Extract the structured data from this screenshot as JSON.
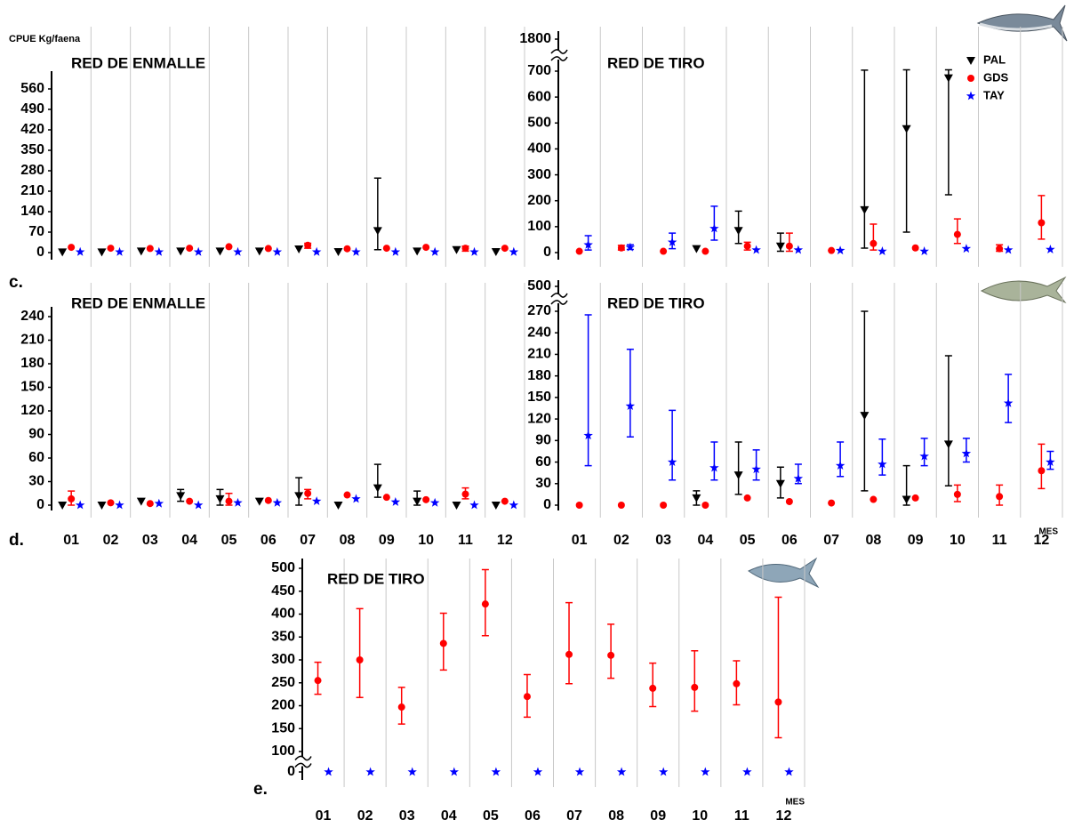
{
  "chart_data": [
    {
      "type": "errorbar",
      "title": "RED DE ENMALLE",
      "ylabel": "CPUE Kg/faena",
      "categories": [
        null,
        null,
        null,
        null,
        null,
        null,
        null,
        null,
        null,
        null,
        null,
        null
      ],
      "ylim": [
        0,
        560
      ],
      "yticks": [
        0,
        70,
        140,
        210,
        280,
        350,
        420,
        490,
        560
      ],
      "grid": "x",
      "series": [
        {
          "marker": "triangle",
          "color": "#000000",
          "values": [
            2,
            2,
            5,
            5,
            5,
            5,
            12,
            3,
            75,
            5,
            10,
            3
          ],
          "lower": [
            null,
            null,
            null,
            null,
            null,
            null,
            null,
            null,
            10,
            null,
            null,
            null
          ],
          "upper": [
            null,
            null,
            null,
            null,
            null,
            null,
            null,
            null,
            255,
            null,
            null,
            null
          ]
        },
        {
          "marker": "circle",
          "color": "#ff0000",
          "values": [
            18,
            15,
            14,
            15,
            20,
            14,
            25,
            13,
            15,
            18,
            15,
            15
          ],
          "lower": [
            null,
            null,
            null,
            null,
            null,
            null,
            15,
            null,
            null,
            null,
            5,
            null
          ],
          "upper": [
            null,
            null,
            null,
            null,
            null,
            null,
            32,
            null,
            null,
            null,
            22,
            null
          ]
        },
        {
          "marker": "star",
          "color": "#0000ff",
          "values": [
            2,
            2,
            2,
            2,
            2,
            2,
            2,
            2,
            2,
            2,
            2,
            2
          ],
          "lower": [
            null,
            null,
            null,
            null,
            null,
            null,
            null,
            null,
            null,
            null,
            null,
            null
          ],
          "upper": [
            null,
            null,
            null,
            null,
            null,
            null,
            null,
            null,
            null,
            null,
            null,
            null
          ]
        }
      ]
    },
    {
      "type": "errorbar",
      "title": "RED DE TIRO",
      "legend": "upper right",
      "categories": [
        null,
        null,
        null,
        null,
        null,
        null,
        null,
        null,
        null,
        null,
        null,
        null
      ],
      "ylim": [
        0,
        700
      ],
      "yticks": [
        0,
        100,
        200,
        300,
        400,
        500,
        600,
        700
      ],
      "break_tick": 1800,
      "grid": "x",
      "series": [
        {
          "name": "PAL",
          "marker": "triangle",
          "color": "#000000",
          "values": [
            null,
            null,
            null,
            15,
            85,
            25,
            null,
            165,
            478,
            674,
            null,
            null
          ],
          "lower": [
            null,
            null,
            null,
            null,
            35,
            5,
            null,
            17,
            79,
            223,
            null,
            null
          ],
          "upper": [
            null,
            null,
            null,
            null,
            160,
            75,
            null,
            735,
            745,
            745,
            null,
            null
          ]
        },
        {
          "name": "GDS",
          "marker": "circle",
          "color": "#ff0000",
          "values": [
            5,
            18,
            5,
            5,
            25,
            25,
            8,
            35,
            18,
            70,
            15,
            115
          ],
          "lower": [
            null,
            10,
            null,
            null,
            10,
            5,
            null,
            10,
            null,
            35,
            5,
            52
          ],
          "upper": [
            null,
            28,
            null,
            null,
            40,
            75,
            null,
            110,
            null,
            130,
            30,
            220
          ]
        },
        {
          "name": "TAY",
          "marker": "star",
          "color": "#0000ff",
          "values": [
            30,
            20,
            40,
            93,
            10,
            10,
            8,
            5,
            5,
            15,
            10,
            12
          ],
          "lower": [
            10,
            12,
            15,
            48,
            null,
            null,
            null,
            null,
            null,
            null,
            null,
            null
          ],
          "upper": [
            65,
            30,
            75,
            179,
            null,
            null,
            null,
            null,
            null,
            null,
            null,
            null
          ]
        }
      ]
    },
    {
      "type": "errorbar",
      "title": "RED DE ENMALLE",
      "panel_label": "c.",
      "categories": [
        "01",
        "02",
        "03",
        "04",
        "05",
        "06",
        "07",
        "08",
        "09",
        "10",
        "11",
        "12"
      ],
      "ylim": [
        0,
        240
      ],
      "yticks": [
        0,
        30,
        60,
        90,
        120,
        150,
        180,
        210,
        240
      ],
      "grid": "x",
      "series": [
        {
          "marker": "triangle",
          "color": "#000000",
          "values": [
            0,
            0,
            5,
            12,
            8,
            5,
            12,
            0,
            22,
            5,
            0,
            0
          ],
          "lower": [
            null,
            null,
            null,
            5,
            0,
            null,
            0,
            null,
            10,
            0,
            null,
            null
          ],
          "upper": [
            null,
            null,
            null,
            20,
            20,
            null,
            35,
            null,
            52,
            18,
            null,
            null
          ]
        },
        {
          "marker": "circle",
          "color": "#ff0000",
          "values": [
            8,
            3,
            2,
            5,
            5,
            6,
            15,
            13,
            10,
            7,
            14,
            5
          ],
          "lower": [
            0,
            null,
            null,
            null,
            0,
            null,
            8,
            null,
            null,
            null,
            8,
            null
          ],
          "upper": [
            18,
            null,
            null,
            null,
            15,
            null,
            20,
            null,
            null,
            null,
            22,
            null
          ]
        },
        {
          "marker": "star",
          "color": "#0000ff",
          "values": [
            0,
            0,
            2,
            0,
            3,
            3,
            5,
            8,
            4,
            3,
            0,
            0
          ],
          "lower": [
            null,
            null,
            null,
            null,
            null,
            null,
            null,
            null,
            null,
            null,
            null,
            null
          ],
          "upper": [
            null,
            null,
            null,
            null,
            null,
            null,
            null,
            null,
            null,
            null,
            null,
            null
          ]
        }
      ]
    },
    {
      "type": "errorbar",
      "title": "RED DE TIRO",
      "panel_label": "d.",
      "xlabel": "MES",
      "categories": [
        "01",
        "02",
        "03",
        "04",
        "05",
        "06",
        "07",
        "08",
        "09",
        "10",
        "11",
        "12"
      ],
      "ylim": [
        0,
        270
      ],
      "yticks": [
        0,
        30,
        60,
        90,
        120,
        150,
        180,
        210,
        240,
        270
      ],
      "break_tick": 500,
      "grid": "x",
      "series": [
        {
          "marker": "triangle",
          "color": "#000000",
          "values": [
            null,
            null,
            null,
            10,
            42,
            30,
            null,
            125,
            8,
            85,
            null,
            null
          ],
          "lower": [
            null,
            null,
            null,
            0,
            15,
            10,
            null,
            20,
            0,
            27,
            null,
            null
          ],
          "upper": [
            null,
            null,
            null,
            20,
            88,
            53,
            null,
            270,
            55,
            208,
            null,
            null
          ]
        },
        {
          "marker": "circle",
          "color": "#ff0000",
          "values": [
            0,
            0,
            0,
            0,
            10,
            5,
            3,
            8,
            10,
            15,
            12,
            48
          ],
          "lower": [
            null,
            null,
            null,
            null,
            null,
            null,
            null,
            null,
            null,
            5,
            0,
            23
          ],
          "upper": [
            null,
            null,
            null,
            null,
            null,
            null,
            null,
            null,
            null,
            28,
            28,
            85
          ]
        },
        {
          "marker": "star",
          "color": "#0000ff",
          "values": [
            97,
            138,
            60,
            52,
            50,
            37,
            55,
            57,
            68,
            72,
            142,
            60
          ],
          "lower": [
            55,
            95,
            35,
            35,
            35,
            30,
            40,
            42,
            55,
            60,
            115,
            50
          ],
          "upper": [
            265,
            217,
            132,
            88,
            77,
            57,
            88,
            92,
            93,
            93,
            182,
            75
          ]
        }
      ]
    },
    {
      "type": "errorbar",
      "title": "RED DE TIRO",
      "panel_label": "e.",
      "xlabel": "MES",
      "categories": [
        "01",
        "02",
        "03",
        "04",
        "05",
        "06",
        "07",
        "08",
        "09",
        "10",
        "11",
        "12"
      ],
      "ylim": [
        100,
        500
      ],
      "yticks": [
        100,
        150,
        200,
        250,
        300,
        350,
        400,
        450,
        500
      ],
      "break_tick": 0,
      "grid": "x",
      "series": [
        {
          "marker": "circle",
          "color": "#ff0000",
          "values": [
            255,
            300,
            197,
            336,
            422,
            220,
            312,
            310,
            238,
            240,
            248,
            208
          ],
          "lower": [
            225,
            218,
            160,
            278,
            353,
            175,
            248,
            260,
            198,
            188,
            202,
            130
          ],
          "upper": [
            295,
            412,
            240,
            402,
            497,
            268,
            425,
            378,
            293,
            320,
            298,
            437
          ]
        },
        {
          "marker": "star",
          "color": "#0000ff",
          "values": [
            0,
            0,
            0,
            0,
            0,
            0,
            0,
            0,
            0,
            0,
            0,
            0
          ],
          "lower": [
            null,
            null,
            null,
            null,
            null,
            null,
            null,
            null,
            null,
            null,
            null,
            null
          ],
          "upper": [
            null,
            null,
            null,
            null,
            null,
            null,
            null,
            null,
            null,
            null,
            null,
            null
          ]
        }
      ]
    }
  ]
}
